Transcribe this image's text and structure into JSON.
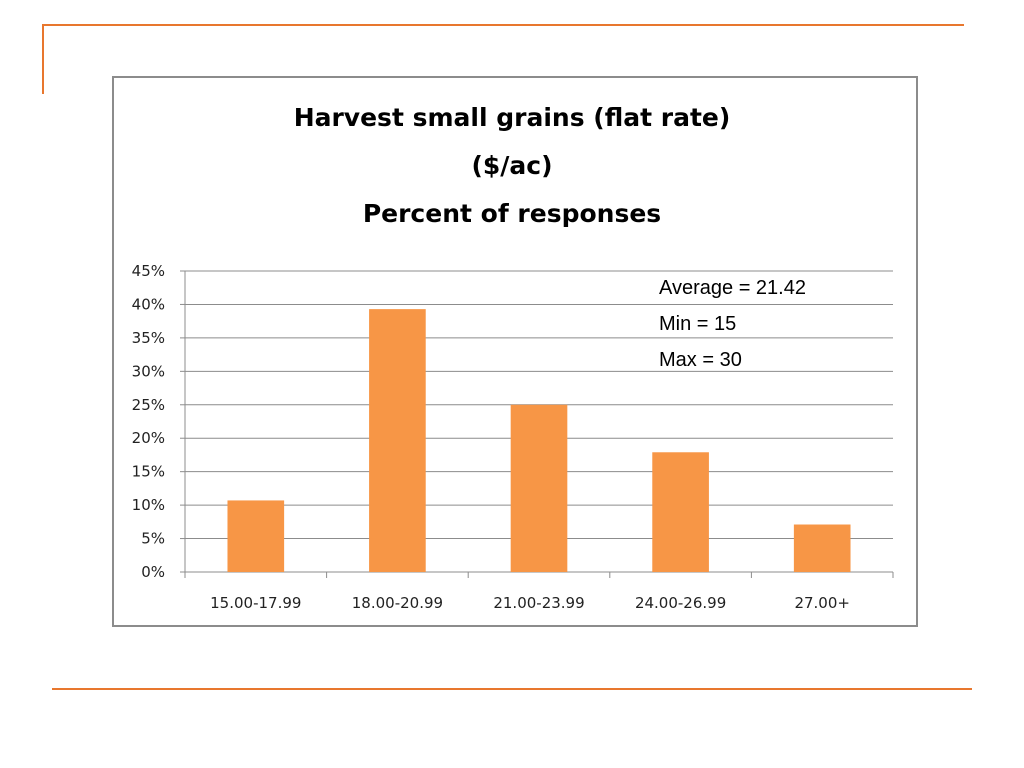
{
  "chart_data": {
    "type": "bar",
    "title_lines": [
      "Harvest small grains (flat rate)",
      "($/ac)",
      "Percent of responses"
    ],
    "categories": [
      "15.00-17.99",
      "18.00-20.99",
      "21.00-23.99",
      "24.00-26.99",
      "27.00+"
    ],
    "values": [
      10.7,
      39.3,
      25.0,
      17.9,
      7.1
    ],
    "value_unit": "%",
    "ylim": [
      0,
      45
    ],
    "yticks": [
      0,
      5,
      10,
      15,
      20,
      25,
      30,
      35,
      40,
      45
    ],
    "ytick_labels": [
      "0%",
      "5%",
      "10%",
      "15%",
      "20%",
      "25%",
      "30%",
      "35%",
      "40%",
      "45%"
    ],
    "grid": true,
    "legend": "none",
    "bar_color": "#F79646",
    "annotations": [
      "Average = 21.42",
      "Min = 15",
      "Max = 30"
    ]
  },
  "accent_color": "#E8772E"
}
